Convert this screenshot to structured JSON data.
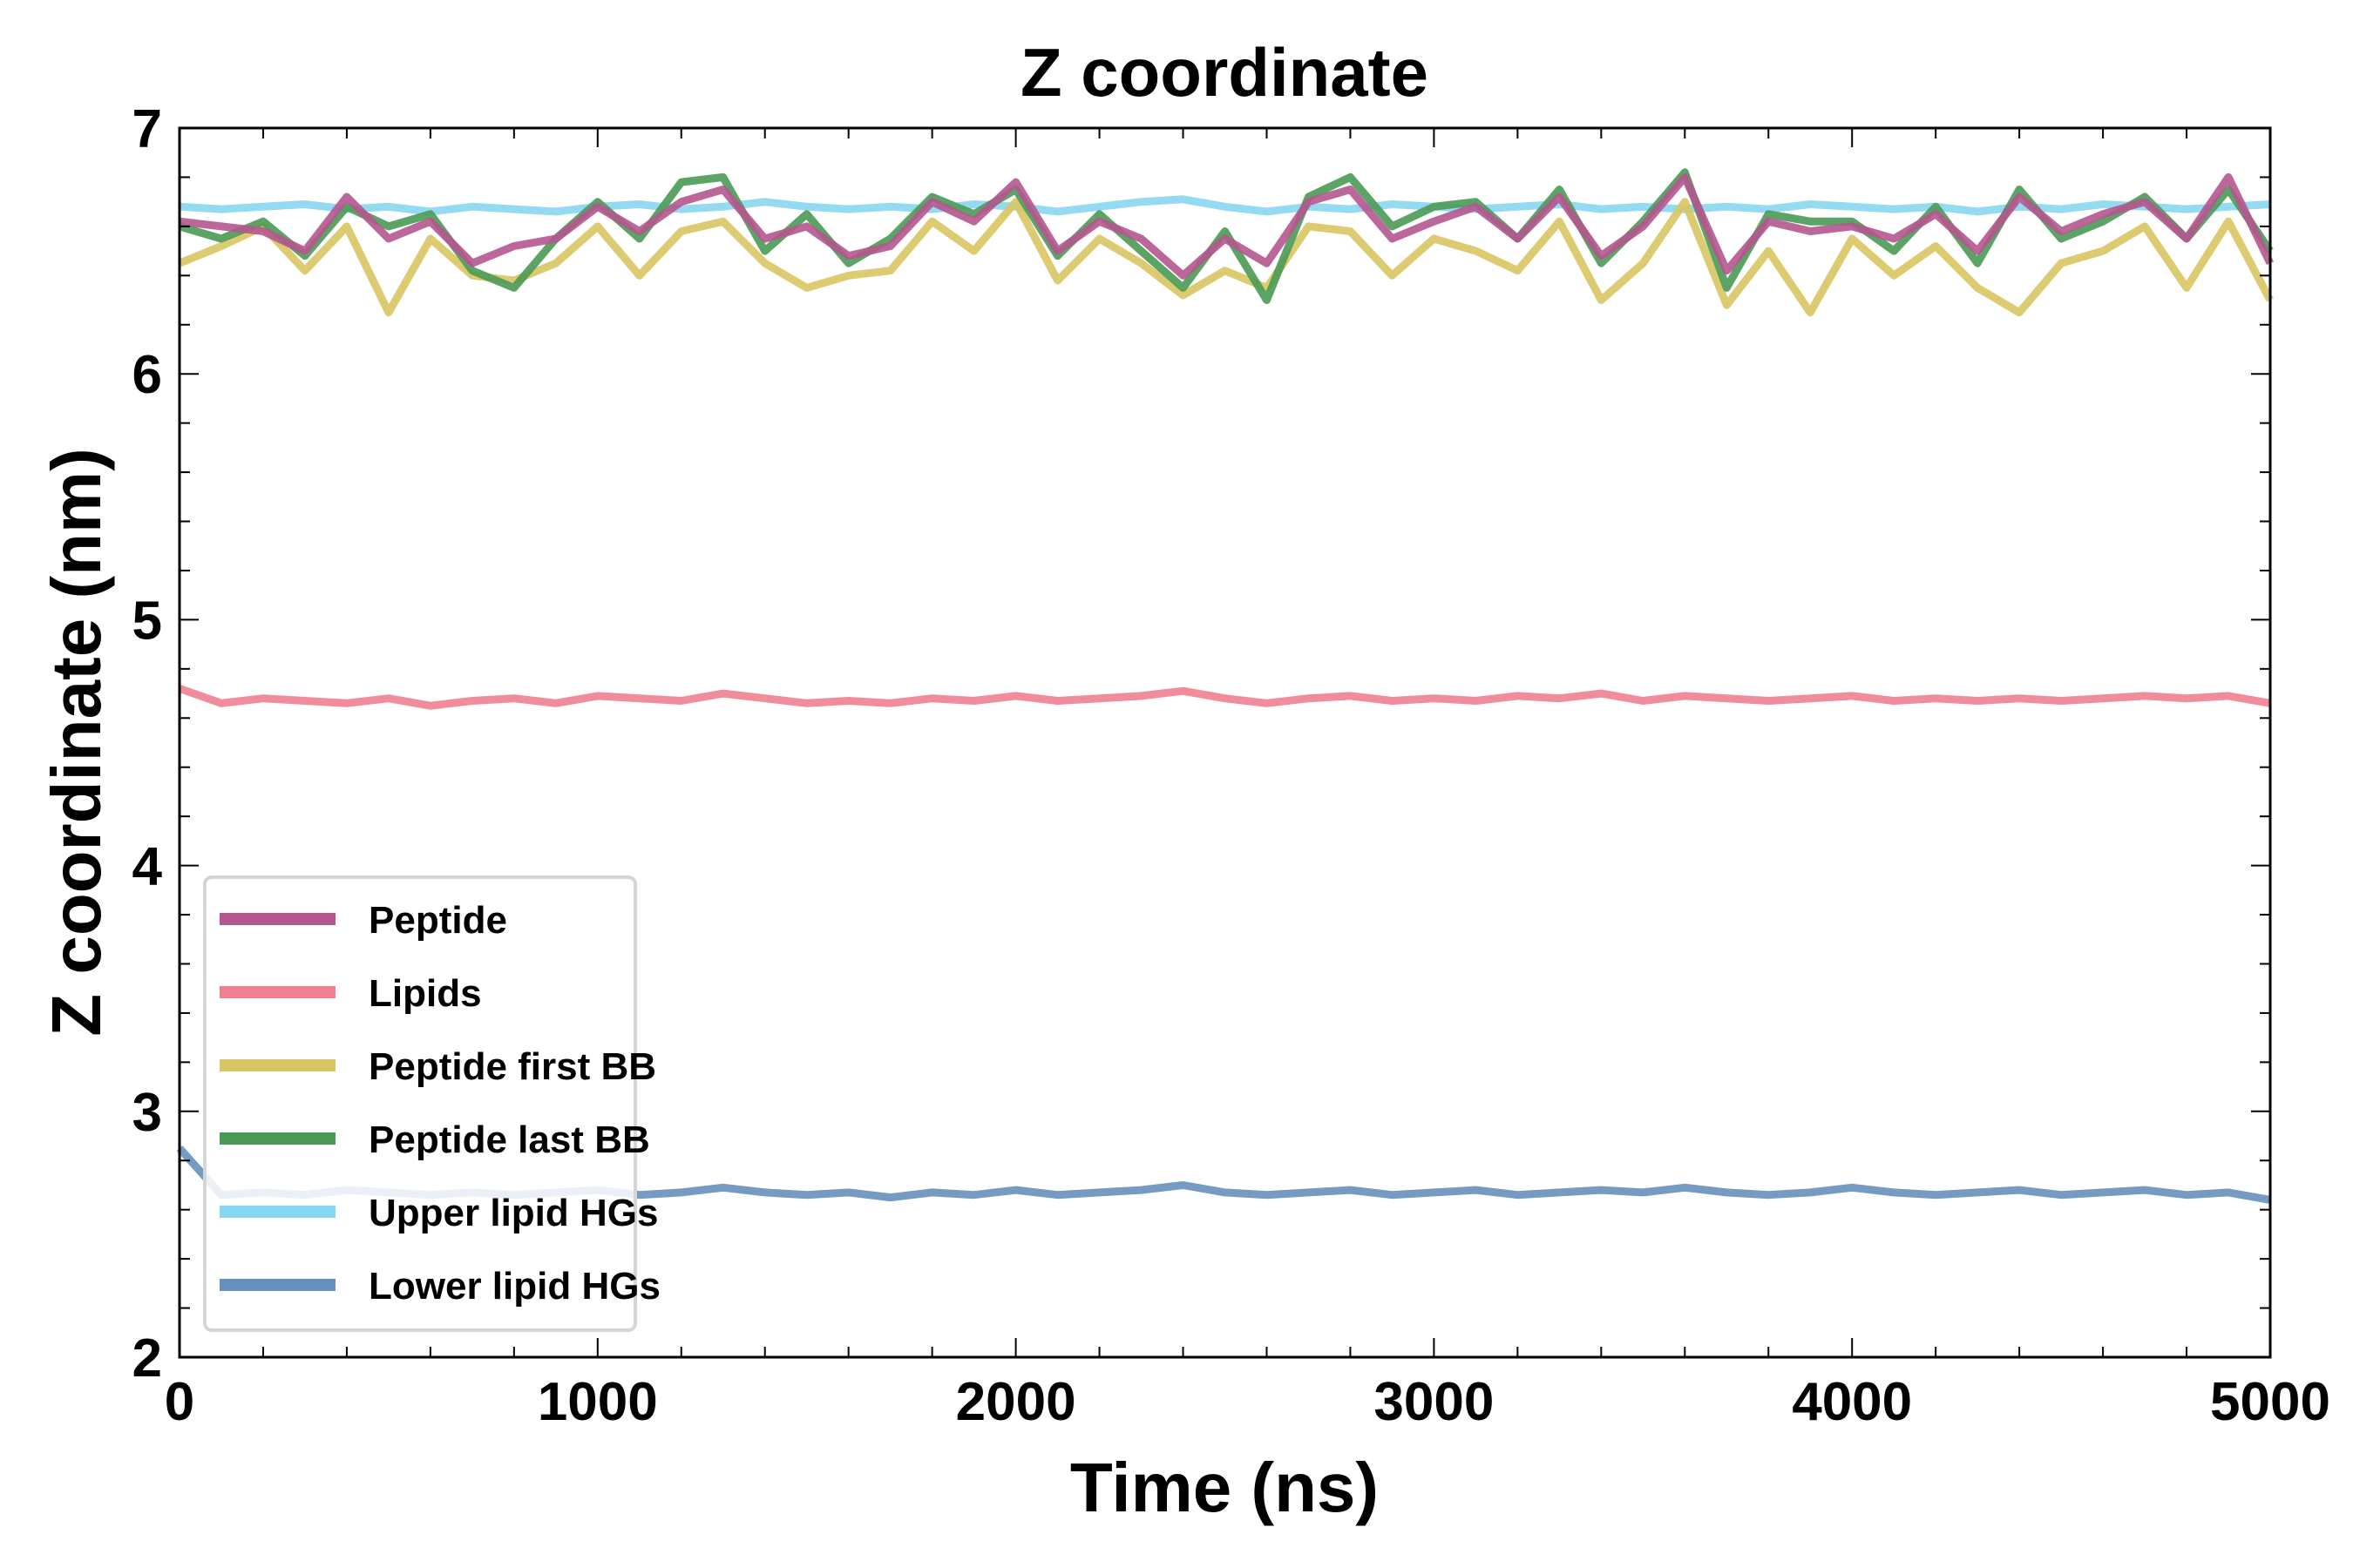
{
  "chart_data": {
    "type": "line",
    "title": "Z coordinate",
    "xlabel": "Time (ns)",
    "ylabel": "Z coordinate (nm)",
    "xlim": [
      0,
      5000
    ],
    "ylim": [
      2,
      7
    ],
    "xticks": [
      0,
      1000,
      2000,
      3000,
      4000,
      5000
    ],
    "yticks": [
      2,
      3,
      4,
      5,
      6,
      7
    ],
    "grid": false,
    "legend_position": "lower-left",
    "x_step": 100,
    "series": [
      {
        "name": "Peptide",
        "color": "#b5568f",
        "values": [
          6.62,
          6.6,
          6.58,
          6.5,
          6.72,
          6.55,
          6.62,
          6.45,
          6.52,
          6.55,
          6.68,
          6.58,
          6.7,
          6.75,
          6.55,
          6.6,
          6.48,
          6.52,
          6.7,
          6.62,
          6.78,
          6.5,
          6.62,
          6.55,
          6.4,
          6.55,
          6.45,
          6.7,
          6.75,
          6.55,
          6.62,
          6.68,
          6.55,
          6.72,
          6.48,
          6.6,
          6.8,
          6.42,
          6.62,
          6.58,
          6.6,
          6.55,
          6.65,
          6.5,
          6.72,
          6.58,
          6.65,
          6.7,
          6.55,
          6.8,
          6.45
        ]
      },
      {
        "name": "Lipids",
        "color": "#ee8090",
        "values": [
          4.72,
          4.66,
          4.68,
          4.67,
          4.66,
          4.68,
          4.65,
          4.67,
          4.68,
          4.66,
          4.69,
          4.68,
          4.67,
          4.7,
          4.68,
          4.66,
          4.67,
          4.66,
          4.68,
          4.67,
          4.69,
          4.67,
          4.68,
          4.69,
          4.71,
          4.68,
          4.66,
          4.68,
          4.69,
          4.67,
          4.68,
          4.67,
          4.69,
          4.68,
          4.7,
          4.67,
          4.69,
          4.68,
          4.67,
          4.68,
          4.69,
          4.67,
          4.68,
          4.67,
          4.68,
          4.67,
          4.68,
          4.69,
          4.68,
          4.69,
          4.66
        ]
      },
      {
        "name": "Peptide first BB",
        "color": "#d8c562",
        "values": [
          6.45,
          6.52,
          6.6,
          6.42,
          6.6,
          6.25,
          6.55,
          6.4,
          6.38,
          6.45,
          6.6,
          6.4,
          6.58,
          6.62,
          6.45,
          6.35,
          6.4,
          6.42,
          6.62,
          6.5,
          6.7,
          6.38,
          6.55,
          6.45,
          6.32,
          6.42,
          6.35,
          6.6,
          6.58,
          6.4,
          6.55,
          6.5,
          6.42,
          6.62,
          6.3,
          6.45,
          6.7,
          6.28,
          6.5,
          6.25,
          6.55,
          6.4,
          6.52,
          6.35,
          6.25,
          6.45,
          6.5,
          6.6,
          6.35,
          6.62,
          6.3
        ]
      },
      {
        "name": "Peptide last BB",
        "color": "#4a9a55",
        "values": [
          6.6,
          6.55,
          6.62,
          6.48,
          6.68,
          6.6,
          6.65,
          6.42,
          6.35,
          6.55,
          6.7,
          6.55,
          6.78,
          6.8,
          6.5,
          6.65,
          6.45,
          6.55,
          6.72,
          6.65,
          6.75,
          6.48,
          6.65,
          6.5,
          6.35,
          6.58,
          6.3,
          6.72,
          6.8,
          6.6,
          6.68,
          6.7,
          6.55,
          6.75,
          6.45,
          6.62,
          6.82,
          6.35,
          6.65,
          6.62,
          6.62,
          6.5,
          6.68,
          6.45,
          6.75,
          6.55,
          6.62,
          6.72,
          6.55,
          6.75,
          6.5
        ]
      },
      {
        "name": "Upper lipid HGs",
        "color": "#88d7f0",
        "values": [
          6.68,
          6.67,
          6.68,
          6.69,
          6.67,
          6.68,
          6.66,
          6.68,
          6.67,
          6.66,
          6.68,
          6.69,
          6.67,
          6.68,
          6.7,
          6.68,
          6.67,
          6.68,
          6.67,
          6.69,
          6.68,
          6.66,
          6.68,
          6.7,
          6.71,
          6.68,
          6.66,
          6.68,
          6.67,
          6.69,
          6.68,
          6.67,
          6.68,
          6.69,
          6.67,
          6.68,
          6.67,
          6.68,
          6.67,
          6.69,
          6.68,
          6.67,
          6.68,
          6.66,
          6.68,
          6.67,
          6.69,
          6.68,
          6.67,
          6.68,
          6.69
        ]
      },
      {
        "name": "Lower lipid HGs",
        "color": "#6790bb",
        "values": [
          2.85,
          2.66,
          2.67,
          2.66,
          2.68,
          2.67,
          2.66,
          2.67,
          2.66,
          2.67,
          2.68,
          2.66,
          2.67,
          2.69,
          2.67,
          2.66,
          2.67,
          2.65,
          2.67,
          2.66,
          2.68,
          2.66,
          2.67,
          2.68,
          2.7,
          2.67,
          2.66,
          2.67,
          2.68,
          2.66,
          2.67,
          2.68,
          2.66,
          2.67,
          2.68,
          2.67,
          2.69,
          2.67,
          2.66,
          2.67,
          2.69,
          2.67,
          2.66,
          2.67,
          2.68,
          2.66,
          2.67,
          2.68,
          2.66,
          2.67,
          2.64
        ]
      }
    ]
  }
}
